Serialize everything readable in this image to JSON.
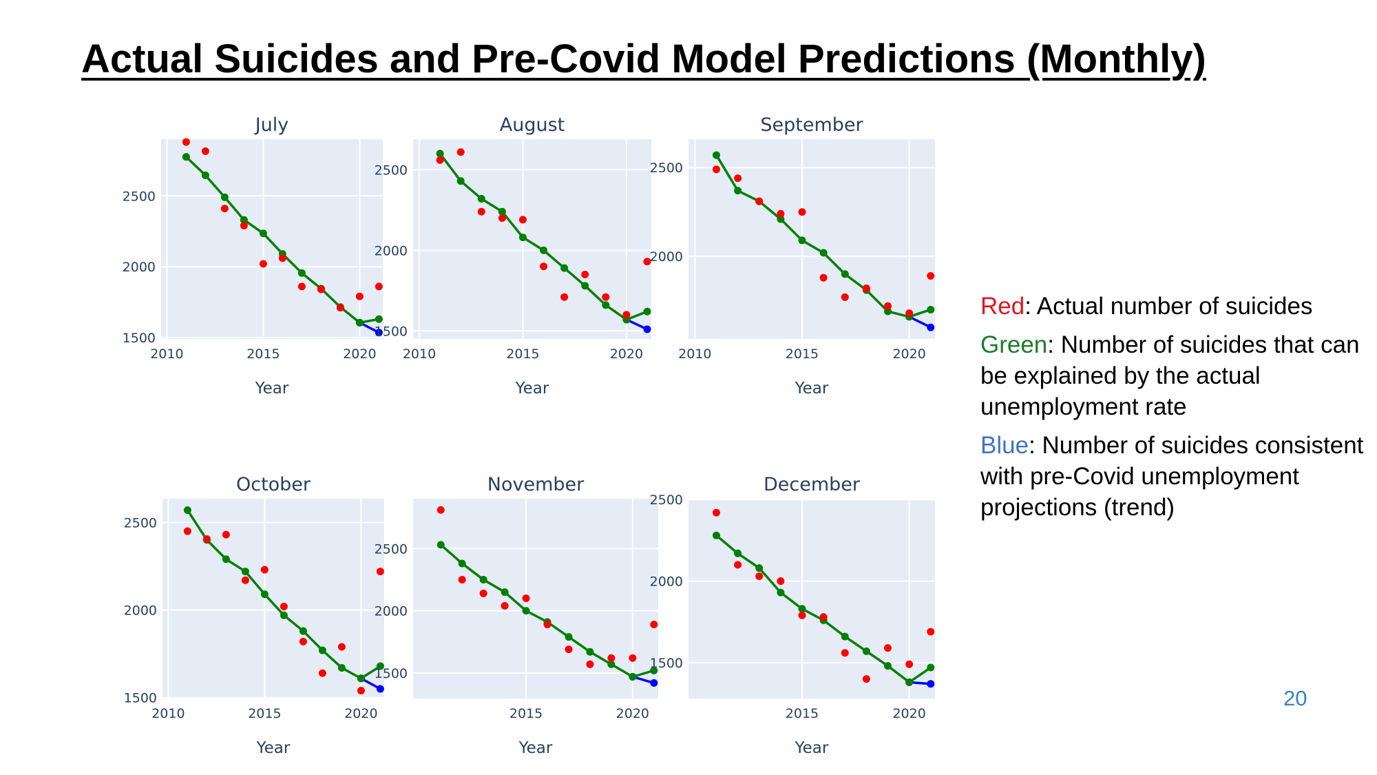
{
  "slide": {
    "title": "Actual Suicides and Pre-Covid Model Predictions (Monthly)",
    "page_number": "20"
  },
  "legend": [
    {
      "key": "Red",
      "text": ": Actual number of suicides",
      "color": "#e3161d"
    },
    {
      "key": "Green",
      "text": ": Number of suicides that can be explained by the actual unemployment rate",
      "color": "#1f7a2a"
    },
    {
      "key": "Blue",
      "text": ": Number of suicides consistent with pre-Covid unemployment projections (trend)",
      "color": "#4472c4"
    }
  ],
  "colors": {
    "plot_bg": "#e5ecf6",
    "grid": "#ffffff",
    "axis_text": "#2a3f5f",
    "actual": "#ff0000",
    "explained": "#008000",
    "trend": "#0000ff"
  },
  "chart_data": [
    {
      "type": "scatter",
      "title": "July",
      "xlabel": "Year",
      "ylabel": "",
      "xlim": [
        2009.7,
        2021.2
      ],
      "ylim": [
        1490,
        2900
      ],
      "xticks": [
        2010,
        2015,
        2020
      ],
      "yticks": [
        1500,
        2000,
        2500
      ],
      "series": [
        {
          "role": "actual",
          "x": [
            2011,
            2012,
            2013,
            2014,
            2015,
            2016,
            2017,
            2018,
            2019,
            2020,
            2021
          ],
          "y": [
            2880,
            2815,
            2410,
            2290,
            2020,
            2060,
            1860,
            1840,
            1710,
            1790,
            1860
          ]
        },
        {
          "role": "explained",
          "x": [
            2011,
            2012,
            2013,
            2014,
            2015,
            2016,
            2017,
            2018,
            2019,
            2020,
            2021
          ],
          "y": [
            2775,
            2645,
            2490,
            2330,
            2235,
            2090,
            1955,
            1845,
            1715,
            1605,
            1630
          ]
        },
        {
          "role": "trend",
          "x": [
            2020,
            2021
          ],
          "y": [
            1605,
            1535
          ]
        }
      ]
    },
    {
      "type": "scatter",
      "title": "August",
      "xlabel": "Year",
      "ylabel": "",
      "xlim": [
        2009.7,
        2021.2
      ],
      "ylim": [
        1450,
        2690
      ],
      "xticks": [
        2010,
        2015,
        2020
      ],
      "yticks": [
        1500,
        2000,
        2500
      ],
      "series": [
        {
          "role": "actual",
          "x": [
            2011,
            2012,
            2013,
            2014,
            2015,
            2016,
            2017,
            2018,
            2019,
            2020,
            2021
          ],
          "y": [
            2560,
            2610,
            2240,
            2200,
            2190,
            1900,
            1710,
            1850,
            1710,
            1600,
            1930
          ]
        },
        {
          "role": "explained",
          "x": [
            2011,
            2012,
            2013,
            2014,
            2015,
            2016,
            2017,
            2018,
            2019,
            2020,
            2021
          ],
          "y": [
            2600,
            2430,
            2320,
            2240,
            2080,
            2000,
            1890,
            1780,
            1660,
            1570,
            1620
          ]
        },
        {
          "role": "trend",
          "x": [
            2020,
            2021
          ],
          "y": [
            1570,
            1510
          ]
        }
      ]
    },
    {
      "type": "scatter",
      "title": "September",
      "xlabel": "Year",
      "ylabel": "",
      "xlim": [
        2009.7,
        2021.2
      ],
      "ylim": [
        1535,
        2660
      ],
      "xticks": [
        2010,
        2015,
        2020
      ],
      "yticks": [
        2000,
        2500
      ],
      "series": [
        {
          "role": "actual",
          "x": [
            2011,
            2012,
            2013,
            2014,
            2015,
            2016,
            2017,
            2018,
            2019,
            2020,
            2021
          ],
          "y": [
            2490,
            2440,
            2310,
            2240,
            2250,
            1880,
            1770,
            1820,
            1720,
            1680,
            1890
          ]
        },
        {
          "role": "explained",
          "x": [
            2011,
            2012,
            2013,
            2014,
            2015,
            2016,
            2017,
            2018,
            2019,
            2020,
            2021
          ],
          "y": [
            2570,
            2370,
            2310,
            2210,
            2090,
            2020,
            1900,
            1810,
            1690,
            1660,
            1700
          ]
        },
        {
          "role": "trend",
          "x": [
            2020,
            2021
          ],
          "y": [
            1660,
            1600
          ]
        }
      ]
    },
    {
      "type": "scatter",
      "title": "October",
      "xlabel": "Year",
      "ylabel": "",
      "xlim": [
        2009.7,
        2021.2
      ],
      "ylim": [
        1495,
        2635
      ],
      "xticks": [
        2010,
        2015,
        2020
      ],
      "yticks": [
        1500,
        2000,
        2500
      ],
      "series": [
        {
          "role": "actual",
          "x": [
            2011,
            2012,
            2013,
            2014,
            2015,
            2016,
            2017,
            2018,
            2019,
            2020,
            2021
          ],
          "y": [
            2450,
            2405,
            2430,
            2170,
            2230,
            2020,
            1820,
            1640,
            1790,
            1540,
            2220
          ]
        },
        {
          "role": "explained",
          "x": [
            2011,
            2012,
            2013,
            2014,
            2015,
            2016,
            2017,
            2018,
            2019,
            2020,
            2021
          ],
          "y": [
            2570,
            2400,
            2290,
            2220,
            2090,
            1970,
            1880,
            1770,
            1670,
            1610,
            1680
          ]
        },
        {
          "role": "trend",
          "x": [
            2020,
            2021
          ],
          "y": [
            1610,
            1550
          ]
        }
      ]
    },
    {
      "type": "scatter",
      "title": "November",
      "xlabel": "Year",
      "ylabel": "",
      "xlim": [
        2009.7,
        2021.2
      ],
      "ylim": [
        1295,
        2900
      ],
      "xticks": [
        2015,
        2020
      ],
      "yticks": [
        1500,
        2000,
        2500
      ],
      "series": [
        {
          "role": "actual",
          "x": [
            2011,
            2012,
            2013,
            2014,
            2015,
            2016,
            2017,
            2018,
            2019,
            2020,
            2021
          ],
          "y": [
            2810,
            2250,
            2140,
            2040,
            2100,
            1890,
            1690,
            1570,
            1620,
            1620,
            1890
          ]
        },
        {
          "role": "explained",
          "x": [
            2011,
            2012,
            2013,
            2014,
            2015,
            2016,
            2017,
            2018,
            2019,
            2020,
            2021
          ],
          "y": [
            2530,
            2380,
            2250,
            2150,
            2000,
            1910,
            1790,
            1670,
            1570,
            1470,
            1520
          ]
        },
        {
          "role": "trend",
          "x": [
            2020,
            2021
          ],
          "y": [
            1470,
            1420
          ]
        }
      ]
    },
    {
      "type": "scatter",
      "title": "December",
      "xlabel": "Year",
      "ylabel": "",
      "xlim": [
        2009.7,
        2021.2
      ],
      "ylim": [
        1280,
        2505
      ],
      "xticks": [
        2015,
        2020
      ],
      "yticks": [
        1500,
        2000,
        2500
      ],
      "series": [
        {
          "role": "actual",
          "x": [
            2011,
            2012,
            2013,
            2014,
            2015,
            2016,
            2017,
            2018,
            2019,
            2020,
            2021
          ],
          "y": [
            2420,
            2100,
            2030,
            2000,
            1790,
            1780,
            1560,
            1400,
            1590,
            1490,
            1690
          ]
        },
        {
          "role": "explained",
          "x": [
            2011,
            2012,
            2013,
            2014,
            2015,
            2016,
            2017,
            2018,
            2019,
            2020,
            2021
          ],
          "y": [
            2280,
            2170,
            2080,
            1930,
            1830,
            1760,
            1660,
            1570,
            1480,
            1380,
            1470
          ]
        },
        {
          "role": "trend",
          "x": [
            2020,
            2021
          ],
          "y": [
            1380,
            1370
          ]
        }
      ]
    }
  ]
}
